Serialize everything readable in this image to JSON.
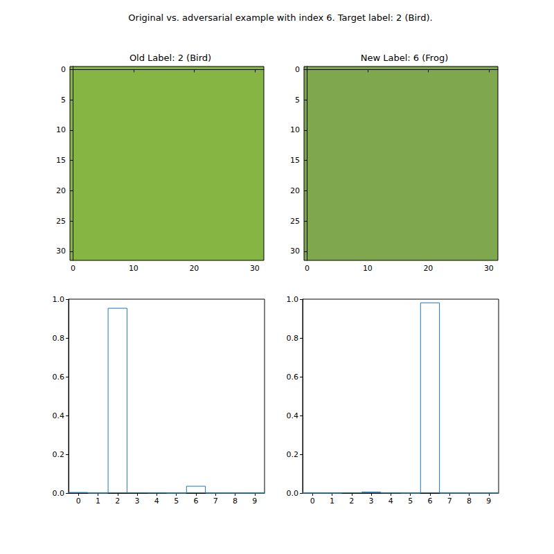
{
  "title": "Original vs. adversarial example with index 6. Target label: 2 (Bird).",
  "chart_data": [
    {
      "type": "image",
      "title": "Old Label: 2 (Bird)",
      "xlim": [
        -0.5,
        31.5
      ],
      "ylim": [
        31.5,
        -0.5
      ],
      "xticks": [
        0,
        10,
        20,
        30
      ],
      "yticks": [
        0,
        5,
        10,
        15,
        20,
        25,
        30
      ]
    },
    {
      "type": "image",
      "title": "New Label: 6 (Frog)",
      "xlim": [
        -0.5,
        31.5
      ],
      "ylim": [
        31.5,
        -0.5
      ],
      "xticks": [
        0,
        10,
        20,
        30
      ],
      "yticks": [
        0,
        5,
        10,
        15,
        20,
        25,
        30
      ]
    },
    {
      "type": "bar",
      "categories": [
        "0",
        "1",
        "2",
        "3",
        "4",
        "5",
        "6",
        "7",
        "8",
        "9"
      ],
      "values": [
        0.005,
        0,
        0.955,
        0.003,
        0.002,
        0,
        0.037,
        0,
        0,
        0
      ],
      "color": "#1f77b4",
      "ylim": [
        0,
        1
      ],
      "yticks": [
        {
          "value": 0,
          "label": "0.0"
        },
        0.2,
        0.4,
        0.6,
        0.8,
        {
          "value": 1,
          "label": "1.0"
        }
      ]
    },
    {
      "type": "bar",
      "categories": [
        "0",
        "1",
        "2",
        "3",
        "4",
        "5",
        "6",
        "7",
        "8",
        "9"
      ],
      "values": [
        0,
        0,
        0.003,
        0.007,
        0.002,
        0,
        0.983,
        0,
        0,
        0
      ],
      "color": "#1f77b4",
      "ylim": [
        0,
        1
      ],
      "yticks": [
        {
          "value": 0,
          "label": "0.0"
        },
        0.2,
        0.4,
        0.6,
        0.8,
        {
          "value": 1,
          "label": "1.0"
        }
      ]
    }
  ]
}
